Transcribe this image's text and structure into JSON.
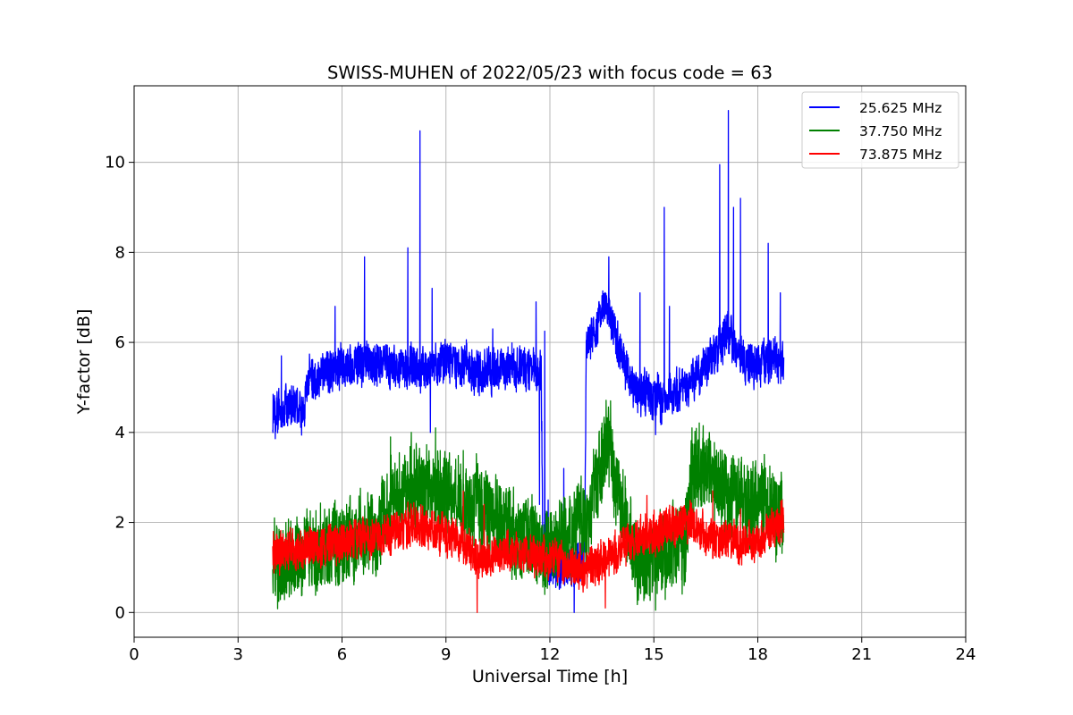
{
  "chart_data": {
    "type": "line",
    "title": "SWISS-MUHEN of 2022/05/23 with focus code = 63",
    "xlabel": "Universal Time [h]",
    "ylabel": "Y-factor [dB]",
    "xlim": [
      0,
      24
    ],
    "ylim": [
      -0.55,
      11.7
    ],
    "xticks": [
      0,
      3,
      6,
      9,
      12,
      15,
      18,
      21,
      24
    ],
    "yticks": [
      0,
      2,
      4,
      6,
      8,
      10
    ],
    "grid": true,
    "legend_position": "top-right",
    "x_range_data": [
      4.0,
      18.75
    ],
    "series": [
      {
        "name": "25.625 MHz",
        "color": "#0000ff",
        "noise": 0.55,
        "points": [
          [
            4.0,
            4.4
          ],
          [
            4.5,
            4.6
          ],
          [
            4.9,
            4.5
          ],
          [
            5.0,
            5.2
          ],
          [
            5.5,
            5.3
          ],
          [
            6.0,
            5.45
          ],
          [
            6.5,
            5.55
          ],
          [
            7.0,
            5.5
          ],
          [
            7.5,
            5.45
          ],
          [
            8.0,
            5.5
          ],
          [
            8.5,
            5.4
          ],
          [
            9.0,
            5.55
          ],
          [
            9.5,
            5.5
          ],
          [
            10.0,
            5.35
          ],
          [
            10.5,
            5.4
          ],
          [
            11.0,
            5.45
          ],
          [
            11.5,
            5.4
          ],
          [
            11.75,
            5.3
          ],
          [
            11.8,
            1.2
          ],
          [
            12.0,
            1.1
          ],
          [
            12.5,
            1.0
          ],
          [
            13.0,
            1.2
          ],
          [
            13.05,
            5.8
          ],
          [
            13.3,
            6.2
          ],
          [
            13.6,
            6.9
          ],
          [
            13.9,
            6.2
          ],
          [
            14.2,
            5.3
          ],
          [
            14.6,
            4.9
          ],
          [
            15.0,
            4.75
          ],
          [
            15.5,
            4.85
          ],
          [
            16.0,
            5.0
          ],
          [
            16.4,
            5.4
          ],
          [
            16.8,
            5.8
          ],
          [
            17.1,
            6.2
          ],
          [
            17.3,
            5.9
          ],
          [
            17.6,
            5.6
          ],
          [
            18.0,
            5.5
          ],
          [
            18.4,
            5.6
          ],
          [
            18.75,
            5.5
          ]
        ],
        "spikes": [
          [
            4.25,
            5.7
          ],
          [
            5.8,
            6.8
          ],
          [
            6.65,
            7.9
          ],
          [
            7.9,
            8.1
          ],
          [
            8.25,
            10.7
          ],
          [
            8.55,
            4.0
          ],
          [
            8.6,
            7.2
          ],
          [
            10.35,
            6.3
          ],
          [
            11.6,
            6.9
          ],
          [
            11.7,
            2.4
          ],
          [
            11.85,
            6.25
          ],
          [
            11.95,
            2.5
          ],
          [
            12.7,
            0.0
          ],
          [
            12.4,
            3.2
          ],
          [
            13.7,
            7.9
          ],
          [
            14.6,
            7.1
          ],
          [
            15.05,
            3.95
          ],
          [
            15.3,
            9.0
          ],
          [
            15.45,
            6.8
          ],
          [
            16.9,
            9.95
          ],
          [
            17.15,
            11.15
          ],
          [
            17.3,
            9.0
          ],
          [
            17.5,
            9.2
          ],
          [
            18.3,
            8.2
          ],
          [
            18.65,
            7.1
          ]
        ]
      },
      {
        "name": "37.750 MHz",
        "color": "#008000",
        "noise": 1.05,
        "points": [
          [
            4.0,
            1.1
          ],
          [
            5.0,
            1.3
          ],
          [
            6.0,
            1.55
          ],
          [
            7.0,
            1.75
          ],
          [
            7.4,
            2.5
          ],
          [
            8.0,
            2.8
          ],
          [
            9.0,
            2.6
          ],
          [
            10.0,
            2.3
          ],
          [
            11.0,
            1.7
          ],
          [
            11.8,
            1.4
          ],
          [
            12.5,
            1.6
          ],
          [
            13.0,
            2.0
          ],
          [
            13.3,
            2.7
          ],
          [
            13.65,
            3.8
          ],
          [
            14.0,
            2.6
          ],
          [
            14.5,
            1.0
          ],
          [
            15.0,
            1.2
          ],
          [
            15.5,
            1.4
          ],
          [
            15.9,
            1.6
          ],
          [
            16.1,
            3.0
          ],
          [
            16.5,
            3.3
          ],
          [
            17.0,
            2.6
          ],
          [
            18.0,
            2.4
          ],
          [
            18.5,
            2.3
          ],
          [
            18.75,
            2.0
          ]
        ],
        "spikes": [
          [
            4.05,
            2.1
          ],
          [
            7.4,
            3.9
          ],
          [
            8.0,
            4.0
          ],
          [
            8.7,
            4.1
          ],
          [
            9.5,
            3.6
          ],
          [
            13.75,
            4.7
          ],
          [
            15.05,
            0.05
          ],
          [
            16.1,
            4.1
          ],
          [
            16.6,
            4.0
          ]
        ]
      },
      {
        "name": "73.875 MHz",
        "color": "#ff0000",
        "noise": 0.5,
        "points": [
          [
            4.0,
            1.3
          ],
          [
            5.0,
            1.45
          ],
          [
            6.0,
            1.55
          ],
          [
            7.0,
            1.65
          ],
          [
            8.0,
            1.95
          ],
          [
            8.5,
            1.9
          ],
          [
            9.0,
            1.75
          ],
          [
            9.5,
            1.55
          ],
          [
            10.0,
            1.15
          ],
          [
            10.5,
            1.3
          ],
          [
            11.0,
            1.3
          ],
          [
            11.5,
            1.25
          ],
          [
            12.0,
            1.15
          ],
          [
            12.5,
            1.1
          ],
          [
            13.0,
            0.95
          ],
          [
            13.5,
            1.15
          ],
          [
            14.0,
            1.4
          ],
          [
            14.5,
            1.6
          ],
          [
            15.0,
            1.75
          ],
          [
            15.5,
            1.9
          ],
          [
            16.0,
            2.0
          ],
          [
            16.5,
            1.75
          ],
          [
            17.0,
            1.6
          ],
          [
            17.5,
            1.55
          ],
          [
            18.0,
            1.6
          ],
          [
            18.5,
            1.85
          ],
          [
            18.75,
            2.0
          ]
        ],
        "spikes": [
          [
            4.02,
            1.8
          ],
          [
            7.9,
            2.45
          ],
          [
            9.5,
            2.7
          ],
          [
            9.9,
            0.0
          ],
          [
            10.1,
            2.4
          ],
          [
            13.6,
            0.1
          ],
          [
            14.8,
            2.6
          ],
          [
            16.7,
            2.7
          ],
          [
            17.5,
            2.3
          ],
          [
            18.7,
            2.5
          ]
        ]
      }
    ]
  }
}
